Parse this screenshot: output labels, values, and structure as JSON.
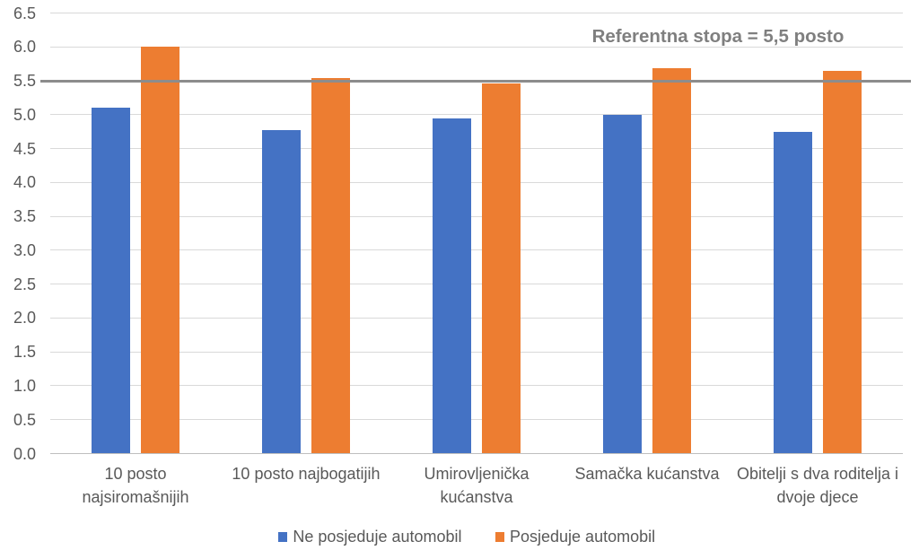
{
  "chart_data": {
    "type": "bar",
    "categories": [
      "10 posto najsiromašnijih",
      "10 posto najbogatijih",
      "Umirovljenička kućanstva",
      "Samačka kućanstva",
      "Obitelji s dva roditelja i dvoje djece"
    ],
    "category_label_lines": [
      [
        "10 posto",
        "najsiromašnijih"
      ],
      [
        "10 posto najbogatijih"
      ],
      [
        "Umirovljenička",
        "kućanstva"
      ],
      [
        "Samačka kućanstva"
      ],
      [
        "Obitelji s dva roditelja i",
        "dvoje djece"
      ]
    ],
    "series": [
      {
        "name": "Ne posjeduje automobil",
        "color": "#4472C4",
        "values": [
          5.11,
          4.77,
          4.94,
          5.0,
          4.74
        ]
      },
      {
        "name": "Posjeduje automobil",
        "color": "#ED7D31",
        "values": [
          6.01,
          5.54,
          5.46,
          5.69,
          5.64
        ]
      }
    ],
    "reference_line": {
      "value": 5.5,
      "label": "Referentna stopa = 5,5 posto",
      "color": "#8C8C8C",
      "label_color": "#7F7F7F"
    },
    "title": "",
    "xlabel": "",
    "ylabel": "",
    "ylim": [
      0,
      6.5
    ],
    "ytick_step": 0.5,
    "ytick_labels": [
      "0.0",
      "0.5",
      "1.0",
      "1.5",
      "2.0",
      "2.5",
      "3.0",
      "3.5",
      "4.0",
      "4.5",
      "5.0",
      "5.5",
      "6.0",
      "6.5"
    ],
    "grid": true,
    "legend_position": "bottom"
  },
  "colors": {
    "background": "#ffffff",
    "gridline": "#D9D9D9",
    "axis_line": "#BFBFBF",
    "tick_text": "#595959",
    "category_text": "#595959",
    "legend_text": "#595959"
  }
}
